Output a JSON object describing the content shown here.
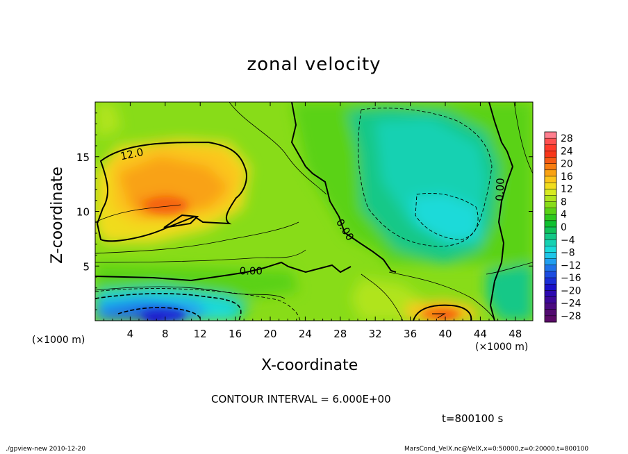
{
  "chart_data": {
    "type": "heatmap",
    "title": "zonal velocity",
    "xlabel": "X-coordinate",
    "ylabel": "Z-coordinate",
    "x_unit_left": "(×1000 m)",
    "x_unit_right": "(×1000 m)",
    "xlim": [
      0,
      50
    ],
    "ylim": [
      0,
      20
    ],
    "x_ticks": [
      "4",
      "8",
      "12",
      "16",
      "20",
      "24",
      "28",
      "32",
      "36",
      "40",
      "44",
      "48"
    ],
    "x_tick_values": [
      4,
      8,
      12,
      16,
      20,
      24,
      28,
      32,
      36,
      40,
      44,
      48
    ],
    "y_ticks": [
      "5",
      "10",
      "15"
    ],
    "y_tick_values": [
      5,
      10,
      15
    ],
    "colorbar": {
      "labels": [
        "28",
        "24",
        "20",
        "16",
        "12",
        "8",
        "4",
        "0",
        "−4",
        "−8",
        "−12",
        "−16",
        "−20",
        "−24",
        "−28"
      ],
      "levels": [
        30,
        28,
        26,
        24,
        22,
        20,
        18,
        16,
        14,
        12,
        10,
        8,
        6,
        4,
        2,
        0,
        -2,
        -4,
        -6,
        -8,
        -10,
        -12,
        -14,
        -16,
        -18,
        -20,
        -22,
        -24,
        -26,
        -28,
        -30
      ],
      "colors": [
        "#ff7f8f",
        "#ff5050",
        "#ff3a2a",
        "#f7361a",
        "#f55a14",
        "#f77d10",
        "#f9a212",
        "#fbc51a",
        "#f0dc1e",
        "#d8ea22",
        "#b0e41e",
        "#88dc18",
        "#5ad216",
        "#2ec81e",
        "#10c030",
        "#12c25a",
        "#14c887",
        "#16d1b2",
        "#1adad9",
        "#1ec6e8",
        "#209ef0",
        "#1f72e8",
        "#1c4ce0",
        "#1a2ed6",
        "#1a10c8",
        "#2c08b0",
        "#3c0898",
        "#4a0a80",
        "#520a70",
        "#5a0a68"
      ]
    },
    "contour_labels": [
      {
        "text": "12.0",
        "x": 4.2,
        "z": 15.2
      },
      {
        "text": "0.00",
        "x": 17.8,
        "z": 4.5
      },
      {
        "text": "0.00",
        "x": 28.5,
        "z": 8.3
      },
      {
        "text": "0.00",
        "x": 46.3,
        "z": 12.0
      }
    ],
    "contour_interval": "CONTOUR INTERVAL = 6.000E+00",
    "time": "t=800100 s"
  },
  "footer": {
    "left": "./gpview-new  2010-12-20",
    "right": "MarsCond_VelX.nc@VelX,x=0:50000,z=0:20000,t=800100"
  }
}
